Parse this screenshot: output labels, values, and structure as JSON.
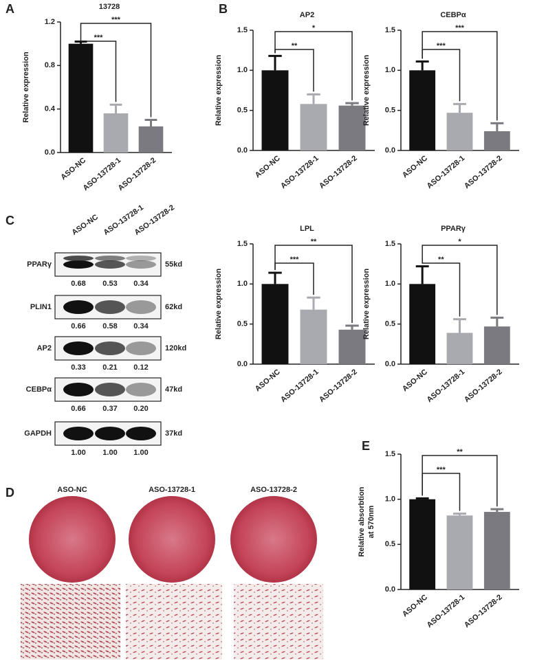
{
  "panels": [
    "A",
    "B",
    "C",
    "D",
    "E"
  ],
  "chart_data": [
    {
      "type": "bar",
      "title": "13728",
      "ylabel": "Relative expression",
      "categories": [
        "ASO-NC",
        "ASO-13728-1",
        "ASO-13728-2"
      ],
      "values": [
        1.0,
        0.36,
        0.24
      ],
      "errors": [
        0.02,
        0.08,
        0.06
      ],
      "colors": [
        "#111111",
        "#a9a9b0",
        "#7a7a80"
      ],
      "ylim": [
        0,
        1.2
      ],
      "yticks": [
        {
          "value": 0,
          "label": "0.0"
        },
        0.4,
        0.8,
        1.2
      ],
      "significance": [
        "***",
        "***"
      ]
    },
    {
      "type": "bar",
      "title": "AP2",
      "ylabel": "Relative expression",
      "categories": [
        "ASO-NC",
        "ASO-13728-1",
        "ASO-13728-2"
      ],
      "values": [
        1.0,
        0.58,
        0.56
      ],
      "errors": [
        0.18,
        0.12,
        0.03
      ],
      "colors": [
        "#111111",
        "#a9a9b0",
        "#7a7a80"
      ],
      "ylim": [
        0,
        1.5
      ],
      "yticks": [
        {
          "value": 0,
          "label": "0.0"
        },
        0.5,
        {
          "value": 1,
          "label": "1.0"
        },
        1.5
      ],
      "significance": [
        "**",
        "*"
      ]
    },
    {
      "type": "bar",
      "title": "CEBPα",
      "ylabel": "Relative expression",
      "categories": [
        "ASO-NC",
        "ASO-13728-1",
        "ASO-13728-2"
      ],
      "values": [
        1.0,
        0.47,
        0.24
      ],
      "errors": [
        0.11,
        0.11,
        0.1
      ],
      "colors": [
        "#111111",
        "#a9a9b0",
        "#7a7a80"
      ],
      "ylim": [
        0,
        1.5
      ],
      "yticks": [
        {
          "value": 0,
          "label": "0.0"
        },
        0.5,
        {
          "value": 1,
          "label": "1.0"
        },
        1.5
      ],
      "significance": [
        "***",
        "***"
      ]
    },
    {
      "type": "bar",
      "title": "LPL",
      "ylabel": "Relative expression",
      "categories": [
        "ASO-NC",
        "ASO-13728-1",
        "ASO-13728-2"
      ],
      "values": [
        1.0,
        0.68,
        0.43
      ],
      "errors": [
        0.14,
        0.15,
        0.05
      ],
      "colors": [
        "#111111",
        "#a9a9b0",
        "#7a7a80"
      ],
      "ylim": [
        0,
        1.5
      ],
      "yticks": [
        {
          "value": 0,
          "label": "0.0"
        },
        0.5,
        {
          "value": 1,
          "label": "1.0"
        },
        1.5
      ],
      "significance": [
        "***",
        "**"
      ]
    },
    {
      "type": "bar",
      "title": "PPARγ",
      "ylabel": "Relative expression",
      "categories": [
        "ASO-NC",
        "ASO-13728-1",
        "ASO-13728-2"
      ],
      "values": [
        1.0,
        0.39,
        0.47
      ],
      "errors": [
        0.22,
        0.17,
        0.11
      ],
      "colors": [
        "#111111",
        "#a9a9b0",
        "#7a7a80"
      ],
      "ylim": [
        0,
        1.5
      ],
      "yticks": [
        {
          "value": 0,
          "label": "0.0"
        },
        0.5,
        {
          "value": 1,
          "label": "1.0"
        },
        1.5
      ],
      "significance": [
        "**",
        "*"
      ]
    },
    {
      "type": "bar",
      "ylabel": [
        "Relative absorbtion",
        "at 570nm"
      ],
      "categories": [
        "ASO-NC",
        "ASO-13728-1",
        "ASO-13728-2"
      ],
      "values": [
        1.0,
        0.82,
        0.86
      ],
      "errors": [
        0.01,
        0.02,
        0.03
      ],
      "colors": [
        "#111111",
        "#a9a9b0",
        "#7a7a80"
      ],
      "ylim": [
        0,
        1.5
      ],
      "yticks": [
        {
          "value": 0,
          "label": "0.0"
        },
        0.5,
        {
          "value": 1,
          "label": "1.0"
        },
        1.5
      ],
      "significance": [
        "***",
        "**"
      ]
    }
  ],
  "blot": {
    "columns": [
      "ASO-NC",
      "ASO-13728-1",
      "ASO-13728-2"
    ],
    "rows": [
      {
        "protein": "PPARγ",
        "size": "55kd",
        "values": [
          "0.68",
          "0.53",
          "0.34"
        ]
      },
      {
        "protein": "PLIN1",
        "size": "62kd",
        "values": [
          "0.66",
          "0.58",
          "0.34"
        ]
      },
      {
        "protein": "AP2",
        "size": "120kd",
        "values": [
          "0.33",
          "0.21",
          "0.12"
        ]
      },
      {
        "protein": "CEBPα",
        "size": "47kd",
        "values": [
          "0.66",
          "0.37",
          "0.20"
        ]
      },
      {
        "protein": "GAPDH",
        "size": "37kd",
        "values": [
          "1.00",
          "1.00",
          "1.00"
        ]
      }
    ]
  },
  "staining": {
    "labels": [
      "ASO-NC",
      "ASO-13728-1",
      "ASO-13728-2"
    ]
  }
}
